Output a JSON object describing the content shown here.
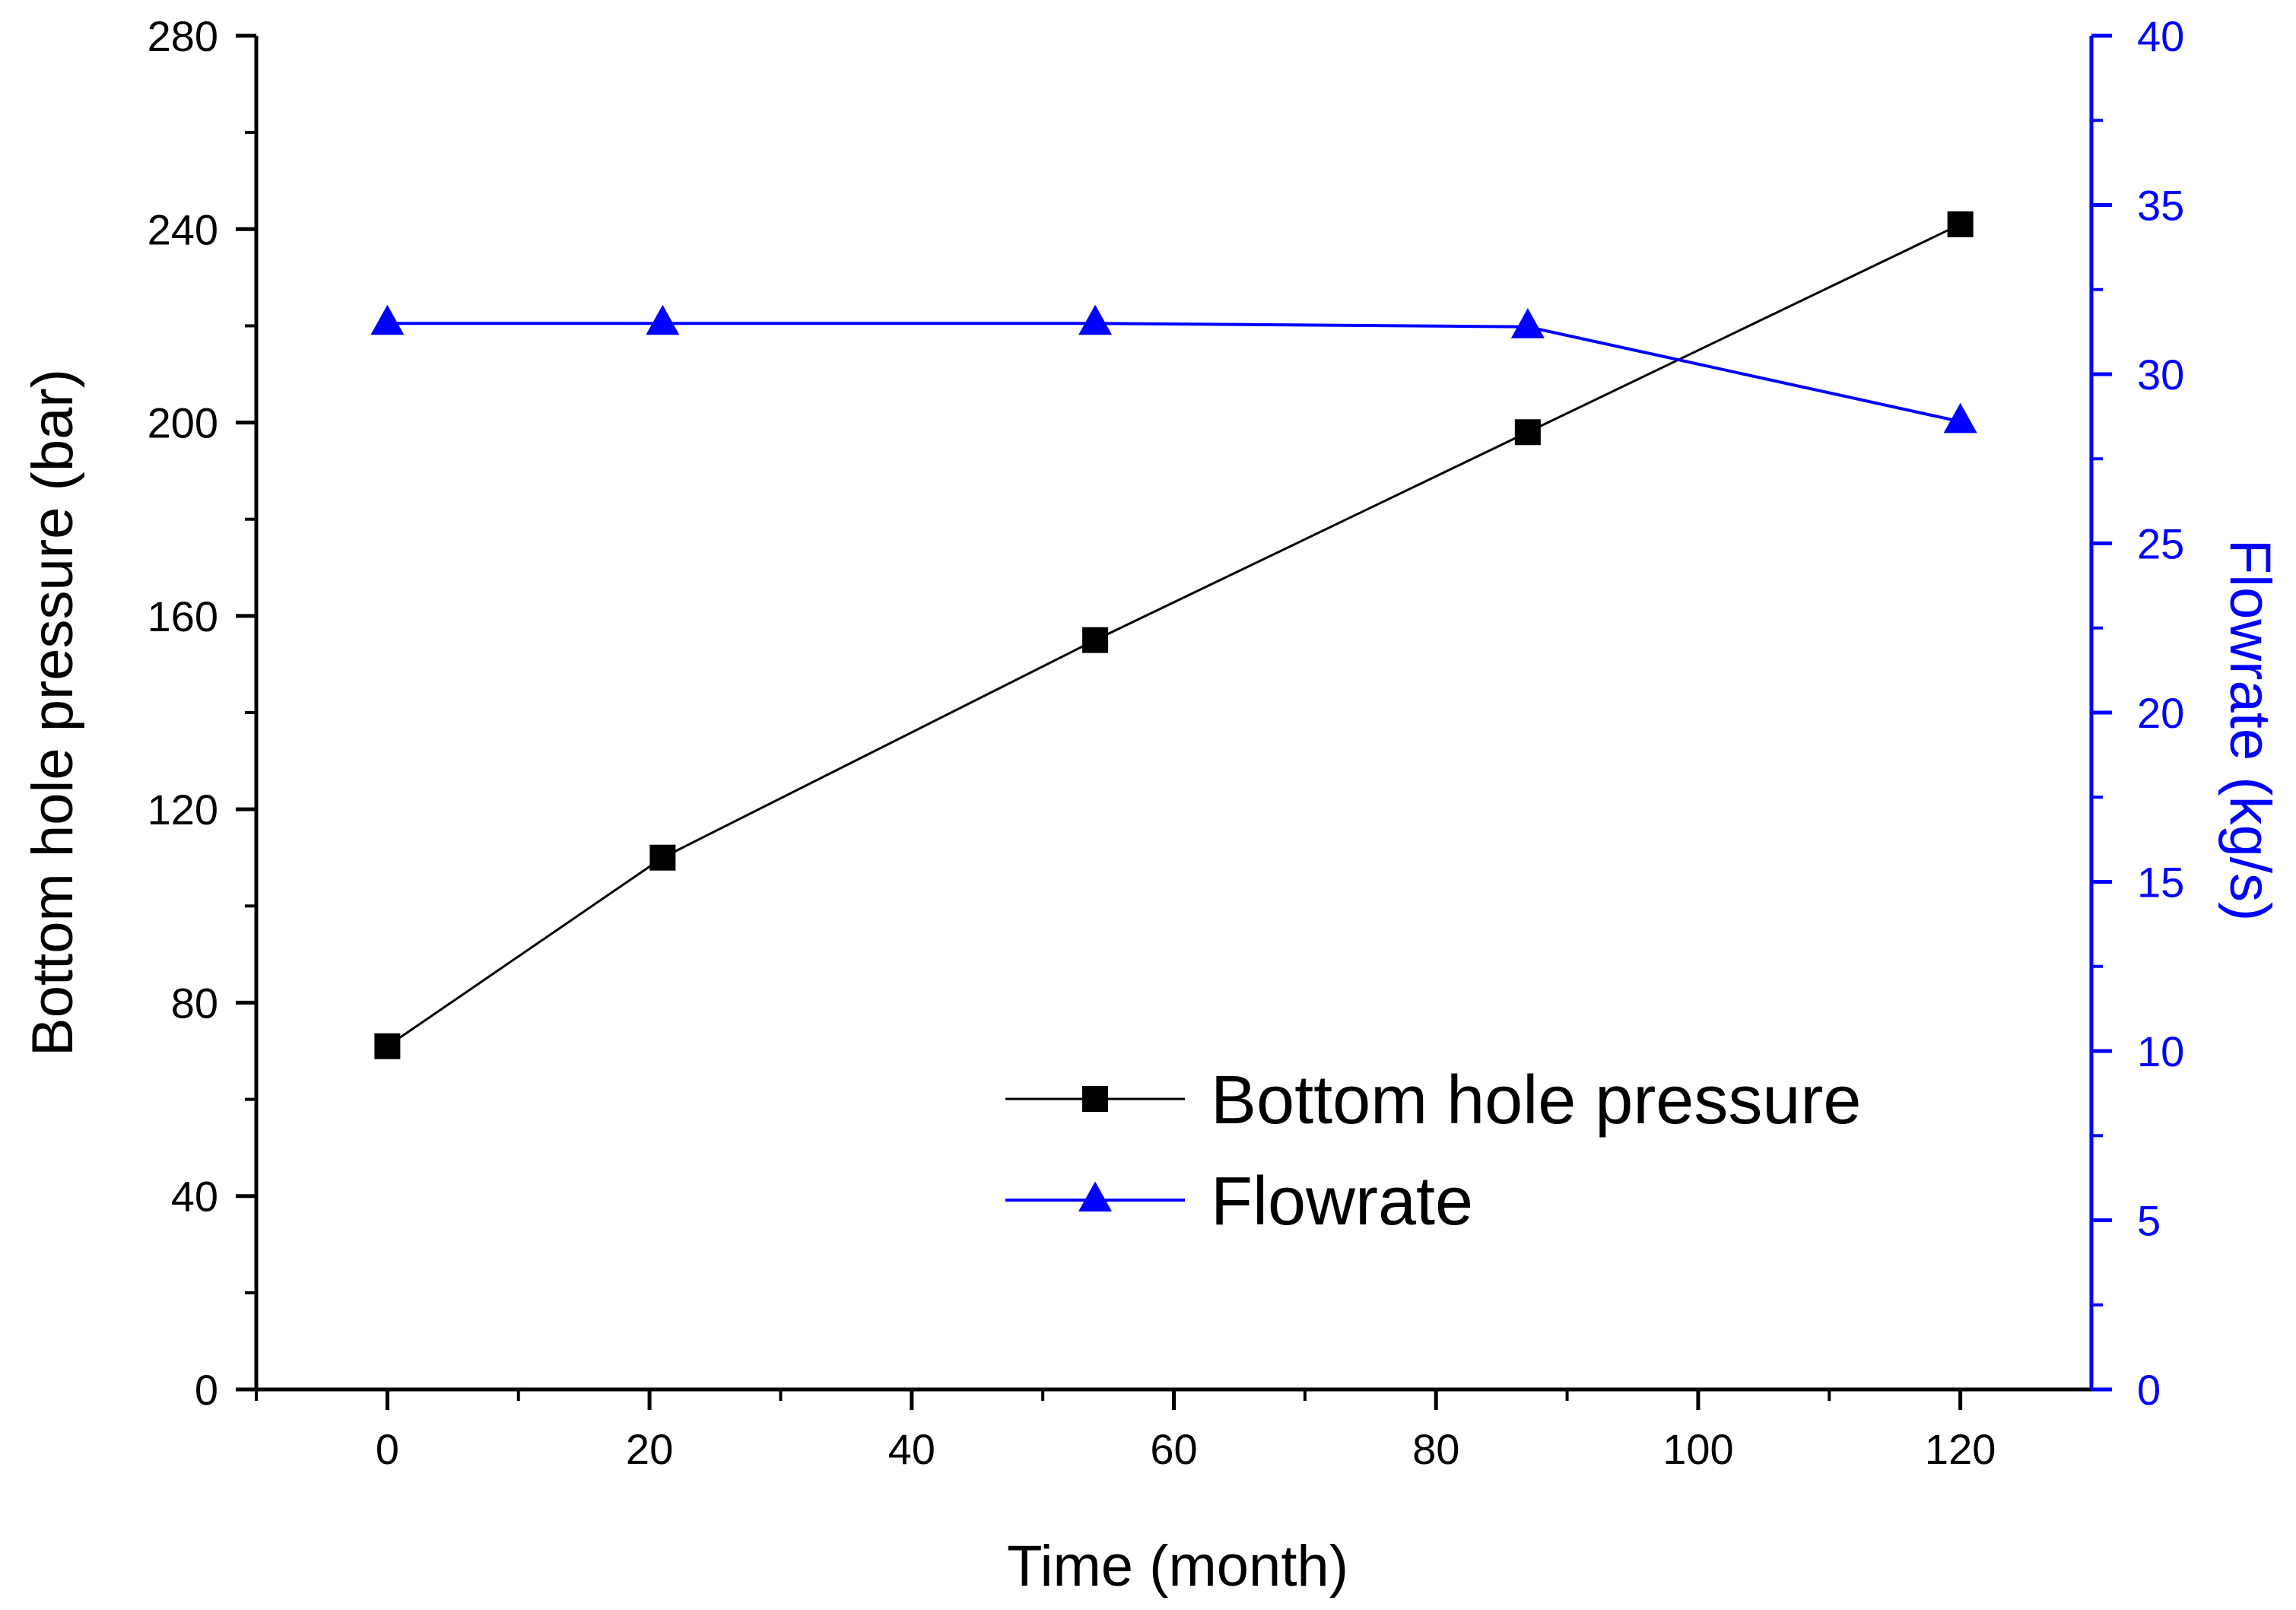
{
  "chart_data": {
    "type": "line",
    "title": "",
    "xlabel": "Time (month)",
    "ylabel": "Bottom hole pressure (bar)",
    "y2label": "Flowrate (kg/s)",
    "xlim": [
      -10,
      130
    ],
    "ylim": [
      0,
      280
    ],
    "y2lim": [
      0,
      40
    ],
    "x_ticks": [
      0,
      20,
      40,
      60,
      80,
      100,
      120
    ],
    "y_ticks": [
      0,
      40,
      80,
      120,
      160,
      200,
      240,
      280
    ],
    "y2_ticks": [
      0,
      5,
      10,
      15,
      20,
      25,
      30,
      35,
      40
    ],
    "grid": false,
    "legend_position": "bottom-right",
    "series": [
      {
        "name": "Bottom hole pressure",
        "axis": "left",
        "marker": "square",
        "color": "#000000",
        "x": [
          0,
          21,
          54,
          87,
          120
        ],
        "values": [
          71,
          110,
          155,
          198,
          241
        ]
      },
      {
        "name": "Flowrate",
        "axis": "right",
        "marker": "triangle",
        "color": "#0000ff",
        "x": [
          0,
          21,
          54,
          87,
          120
        ],
        "values": [
          31.5,
          31.5,
          31.5,
          31.4,
          28.6
        ]
      }
    ]
  }
}
